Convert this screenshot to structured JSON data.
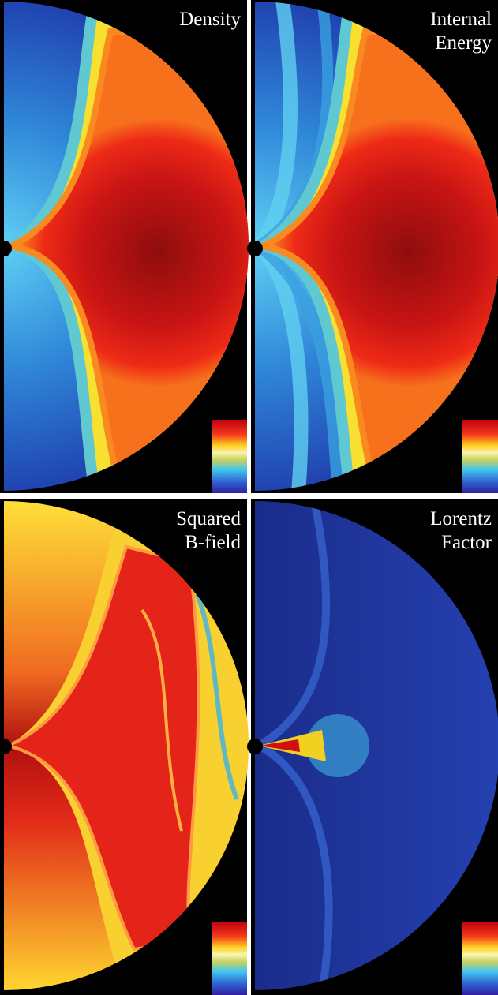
{
  "panels": [
    {
      "label_lines": [
        "Density"
      ]
    },
    {
      "label_lines": [
        "Internal",
        "Energy"
      ]
    },
    {
      "label_lines": [
        "Squared",
        "B-field"
      ]
    },
    {
      "label_lines": [
        "Lorentz",
        "Factor"
      ]
    }
  ]
}
